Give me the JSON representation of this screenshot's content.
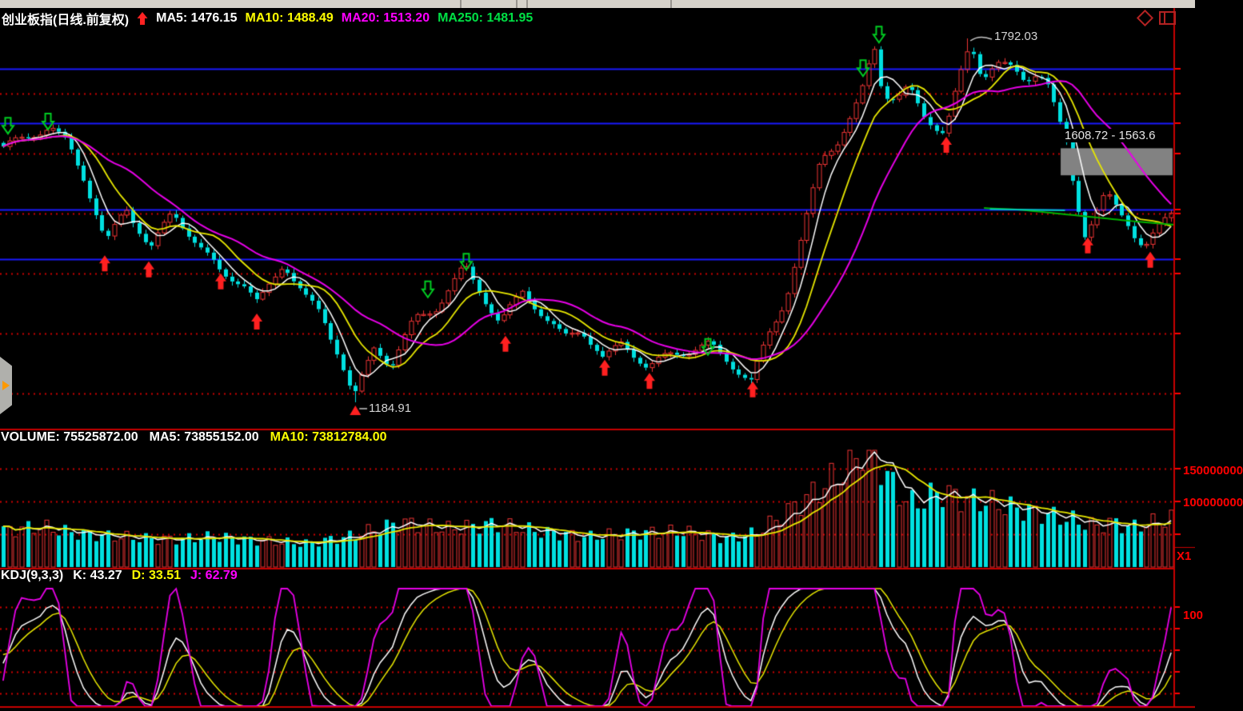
{
  "header": {
    "title": "创业板指(日线.前复权)",
    "ma5": "MA5: 1476.15",
    "ma10": "MA10: 1488.49",
    "ma20": "MA20: 1513.20",
    "ma250": "MA250: 1481.95"
  },
  "volume_header": {
    "volume": "VOLUME: 75525872.00",
    "ma5": "MA5: 73855152.00",
    "ma10": "MA10: 73812784.00"
  },
  "kdj_header": {
    "name": "KDJ(9,3,3)",
    "k": "K: 43.27",
    "d": "D: 33.51",
    "j": "J: 62.79"
  },
  "axis_labels": {
    "vol_150": "150000000",
    "vol_100": "100000000",
    "x1": "X1",
    "kdj_100": "100"
  },
  "colors": {
    "bg": "#000000",
    "up": "#ee3535",
    "down": "#00e0e0",
    "ma5": "#ffffff",
    "ma10": "#e8e800",
    "ma20": "#e800e8",
    "ma250": "#00b400",
    "blue_line": "#1a1aff",
    "grid_dot": "#cc0000",
    "divider": "#c80000",
    "axis_label": "#ff0000",
    "annotation": "#d4d4d4",
    "gray_box": "#828282",
    "icon_red": "#b22222",
    "marker_up": "#ff2020",
    "marker_down": "#00cc22",
    "trend": "#00ccbb"
  },
  "chart_data": [
    {
      "type": "candlestick",
      "title": "创业板指(日线.前复权)",
      "n": 190,
      "ylim": [
        1139.5,
        1809.4
      ],
      "ma_values": {
        "MA5": 1476.15,
        "MA10": 1488.49,
        "MA20": 1513.2,
        "MA250": 1481.95
      },
      "close_anchors": [
        [
          0,
          1605
        ],
        [
          0.012,
          1618
        ],
        [
          0.04,
          1645
        ],
        [
          0.055,
          1620
        ],
        [
          0.07,
          1560
        ],
        [
          0.088,
          1452
        ],
        [
          0.105,
          1510
        ],
        [
          0.126,
          1438
        ],
        [
          0.145,
          1498
        ],
        [
          0.165,
          1450
        ],
        [
          0.187,
          1400
        ],
        [
          0.205,
          1390
        ],
        [
          0.218,
          1352
        ],
        [
          0.24,
          1420
        ],
        [
          0.258,
          1360
        ],
        [
          0.272,
          1328
        ],
        [
          0.287,
          1262
        ],
        [
          0.3,
          1187
        ],
        [
          0.318,
          1278
        ],
        [
          0.332,
          1248
        ],
        [
          0.352,
          1328
        ],
        [
          0.372,
          1348
        ],
        [
          0.395,
          1412
        ],
        [
          0.412,
          1355
        ],
        [
          0.425,
          1312
        ],
        [
          0.445,
          1368
        ],
        [
          0.465,
          1322
        ],
        [
          0.48,
          1295
        ],
        [
          0.495,
          1312
        ],
        [
          0.514,
          1258
        ],
        [
          0.53,
          1288
        ],
        [
          0.552,
          1238
        ],
        [
          0.57,
          1262
        ],
        [
          0.59,
          1268
        ],
        [
          0.605,
          1280
        ],
        [
          0.62,
          1256
        ],
        [
          0.64,
          1222
        ],
        [
          0.655,
          1300
        ],
        [
          0.67,
          1360
        ],
        [
          0.685,
          1470
        ],
        [
          0.7,
          1590
        ],
        [
          0.715,
          1618
        ],
        [
          0.728,
          1662
        ],
        [
          0.738,
          1718
        ],
        [
          0.745,
          1786
        ],
        [
          0.753,
          1700
        ],
        [
          0.765,
          1692
        ],
        [
          0.775,
          1712
        ],
        [
          0.788,
          1668
        ],
        [
          0.8,
          1646
        ],
        [
          0.806,
          1638
        ],
        [
          0.818,
          1722
        ],
        [
          0.828,
          1783
        ],
        [
          0.838,
          1726
        ],
        [
          0.85,
          1748
        ],
        [
          0.862,
          1738
        ],
        [
          0.875,
          1718
        ],
        [
          0.886,
          1736
        ],
        [
          0.895,
          1710
        ],
        [
          0.902,
          1662
        ],
        [
          0.91,
          1618
        ],
        [
          0.917,
          1540
        ],
        [
          0.926,
          1470
        ],
        [
          0.935,
          1502
        ],
        [
          0.944,
          1536
        ],
        [
          0.953,
          1512
        ],
        [
          0.962,
          1490
        ],
        [
          0.972,
          1452
        ],
        [
          0.979,
          1446
        ],
        [
          0.988,
          1470
        ],
        [
          1,
          1498
        ]
      ],
      "blue_levels": [
        1741.4,
        1650.6,
        1506.5,
        1423.8
      ],
      "dotted_levels": [
        1700,
        1600,
        1500,
        1400,
        1300,
        1200
      ],
      "ma250_anchors": [
        [
          0.838,
          1509
        ],
        [
          0.87,
          1506
        ],
        [
          0.9,
          1500
        ],
        [
          0.94,
          1492
        ],
        [
          0.97,
          1486
        ],
        [
          1,
          1481
        ]
      ],
      "trendline": {
        "x": [
          0.843,
          0.907
        ],
        "price": [
          1507,
          1505
        ]
      },
      "markers_buy": [
        [
          0.0892,
          1434
        ],
        [
          0.1267,
          1424
        ],
        [
          0.188,
          1404
        ],
        [
          0.2187,
          1337
        ],
        [
          0.4305,
          1300
        ],
        [
          0.515,
          1260
        ],
        [
          0.5531,
          1238
        ],
        [
          0.641,
          1224
        ],
        [
          0.8059,
          1632
        ],
        [
          0.9264,
          1464
        ],
        [
          0.9796,
          1440
        ]
      ],
      "markers_sell": [
        [
          0.0068,
          1629
        ],
        [
          0.0409,
          1636
        ],
        [
          0.3644,
          1356
        ],
        [
          0.3971,
          1402
        ],
        [
          0.6029,
          1260
        ],
        [
          0.735,
          1725
        ],
        [
          0.7486,
          1781
        ]
      ],
      "annotations": {
        "peak": {
          "x": 0.828,
          "price": 1792.03,
          "label": "1792.03"
        },
        "trough": {
          "x": 0.3,
          "price": 1184.91,
          "label": "1184.91"
        },
        "range": {
          "label": "1608.72 - 1563.6",
          "x0": 0.9033,
          "x1": 0.9986,
          "price_top": 1608.72,
          "price_bottom": 1563.6
        }
      }
    },
    {
      "type": "bar",
      "name": "VOLUME",
      "values": {
        "volume": 75525872.0,
        "ma5": 73855152.0,
        "ma10": 73812784.0
      },
      "vol_anchors": [
        [
          0,
          55
        ],
        [
          0.03,
          62
        ],
        [
          0.06,
          52
        ],
        [
          0.1,
          46
        ],
        [
          0.14,
          42
        ],
        [
          0.18,
          46
        ],
        [
          0.22,
          40
        ],
        [
          0.26,
          36
        ],
        [
          0.3,
          48
        ],
        [
          0.34,
          68
        ],
        [
          0.38,
          58
        ],
        [
          0.42,
          66
        ],
        [
          0.46,
          54
        ],
        [
          0.5,
          46
        ],
        [
          0.54,
          52
        ],
        [
          0.58,
          54
        ],
        [
          0.62,
          44
        ],
        [
          0.645,
          52
        ],
        [
          0.66,
          70
        ],
        [
          0.68,
          95
        ],
        [
          0.7,
          120
        ],
        [
          0.715,
          140
        ],
        [
          0.73,
          165
        ],
        [
          0.735,
          182
        ],
        [
          0.75,
          160
        ],
        [
          0.765,
          115
        ],
        [
          0.78,
          95
        ],
        [
          0.8,
          115
        ],
        [
          0.82,
          105
        ],
        [
          0.84,
          100
        ],
        [
          0.86,
          92
        ],
        [
          0.88,
          85
        ],
        [
          0.9,
          78
        ],
        [
          0.92,
          70
        ],
        [
          0.935,
          62
        ],
        [
          0.95,
          68
        ],
        [
          0.965,
          60
        ],
        [
          0.98,
          66
        ],
        [
          1,
          74
        ]
      ],
      "gridlines_millions": [
        150,
        100,
        50
      ],
      "axis_tick_labels": [
        "150000000",
        "100000000"
      ]
    },
    {
      "type": "line",
      "name": "KDJ",
      "params": [
        9,
        3,
        3
      ],
      "values": {
        "k": 43.27,
        "d": 33.51,
        "j": 62.79
      },
      "gridlines": [
        80,
        65,
        50,
        35,
        20
      ],
      "ylim": [
        0,
        100
      ]
    }
  ]
}
